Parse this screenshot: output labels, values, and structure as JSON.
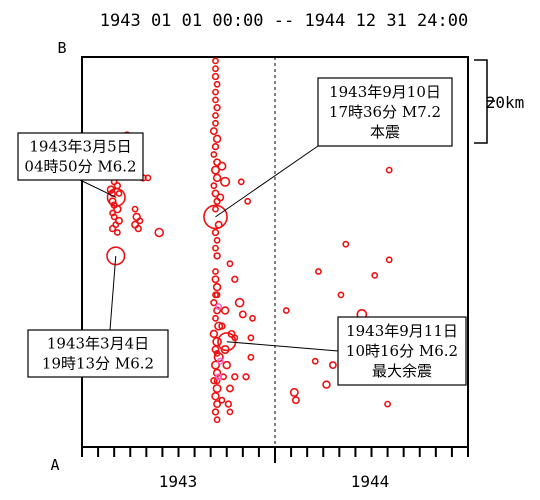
{
  "chart_data": {
    "type": "scatter",
    "title": "1943 01 01 00:00 -- 1944 12 31 24:00",
    "xlabel": "",
    "ylabel": "",
    "x_tick_labels": [
      "1943",
      "1944"
    ],
    "axis_end_labels": {
      "bottom": "A",
      "top": "B"
    },
    "xlim": [
      0,
      24
    ],
    "ylim": [
      0,
      100
    ],
    "scale_bar_label": "20km",
    "grid": false,
    "x_units": "months since 1943 01 01",
    "y_units": "relative distance along profile A-B",
    "colors": {
      "marker": "#ee1111",
      "minor_marker": "#ff66cc",
      "axis": "#000000"
    },
    "annotations": [
      {
        "line1": "1943年3月5日",
        "line2": "04時50分 M6.2",
        "line3": "",
        "x": 2.13,
        "y": 64
      },
      {
        "line1": "1943年3月4日",
        "line2": "19時13分 M6.2",
        "line3": "",
        "x": 2.1,
        "y": 49
      },
      {
        "line1": "1943年9月10日",
        "line2": "17時36分 M7.2",
        "line3": "本震",
        "x": 8.3,
        "y": 59
      },
      {
        "line1": "1943年9月11日",
        "line2": "10時16分 M6.2",
        "line3": "最大余震",
        "x": 9.0,
        "y": 27
      }
    ],
    "series": [
      {
        "values": [
          {
            "x": 2.13,
            "y": 64,
            "m": 6.2
          },
          {
            "x": 2.1,
            "y": 49,
            "m": 6.2
          },
          {
            "x": 1.8,
            "y": 72,
            "m": 4.0
          },
          {
            "x": 1.9,
            "y": 70,
            "m": 4.2
          },
          {
            "x": 2.0,
            "y": 68,
            "m": 4.0
          },
          {
            "x": 1.8,
            "y": 66,
            "m": 4.3
          },
          {
            "x": 1.9,
            "y": 65,
            "m": 4.0
          },
          {
            "x": 2.2,
            "y": 67,
            "m": 4.1
          },
          {
            "x": 2.3,
            "y": 65,
            "m": 4.0
          },
          {
            "x": 1.9,
            "y": 63,
            "m": 4.2
          },
          {
            "x": 2.0,
            "y": 62,
            "m": 4.1
          },
          {
            "x": 2.2,
            "y": 61,
            "m": 4.3
          },
          {
            "x": 1.9,
            "y": 60,
            "m": 4.0
          },
          {
            "x": 2.0,
            "y": 59,
            "m": 4.0
          },
          {
            "x": 2.3,
            "y": 58,
            "m": 4.2
          },
          {
            "x": 2.1,
            "y": 57,
            "m": 4.0
          },
          {
            "x": 2.2,
            "y": 55,
            "m": 4.0
          },
          {
            "x": 1.9,
            "y": 56,
            "m": 4.1
          },
          {
            "x": 1.7,
            "y": 73,
            "m": 4.0
          },
          {
            "x": 2.1,
            "y": 74,
            "m": 4.0
          },
          {
            "x": 2.8,
            "y": 80,
            "m": 4.1
          },
          {
            "x": 2.9,
            "y": 75,
            "m": 4.0
          },
          {
            "x": 2.7,
            "y": 71,
            "m": 4.0
          },
          {
            "x": 3.1,
            "y": 70,
            "m": 4.0
          },
          {
            "x": 3.8,
            "y": 69,
            "m": 4.1
          },
          {
            "x": 4.1,
            "y": 69,
            "m": 4.0
          },
          {
            "x": 3.3,
            "y": 61,
            "m": 4.0
          },
          {
            "x": 3.4,
            "y": 59,
            "m": 4.3
          },
          {
            "x": 3.3,
            "y": 57,
            "m": 4.2
          },
          {
            "x": 3.5,
            "y": 56,
            "m": 4.1
          },
          {
            "x": 3.6,
            "y": 58,
            "m": 4.0
          },
          {
            "x": 4.8,
            "y": 55,
            "m": 4.5
          },
          {
            "x": 8.3,
            "y": 59,
            "m": 7.2
          },
          {
            "x": 9.0,
            "y": 27,
            "m": 6.2
          },
          {
            "x": 8.3,
            "y": 99,
            "m": 4.0
          },
          {
            "x": 8.3,
            "y": 97,
            "m": 4.0
          },
          {
            "x": 8.3,
            "y": 95,
            "m": 4.1
          },
          {
            "x": 8.4,
            "y": 93,
            "m": 4.0
          },
          {
            "x": 8.3,
            "y": 91,
            "m": 4.0
          },
          {
            "x": 8.3,
            "y": 89,
            "m": 4.0
          },
          {
            "x": 8.4,
            "y": 87,
            "m": 4.1
          },
          {
            "x": 8.3,
            "y": 85,
            "m": 4.0
          },
          {
            "x": 8.3,
            "y": 83,
            "m": 4.0
          },
          {
            "x": 8.2,
            "y": 81,
            "m": 4.2
          },
          {
            "x": 8.4,
            "y": 79,
            "m": 4.3
          },
          {
            "x": 8.3,
            "y": 77,
            "m": 4.1
          },
          {
            "x": 8.2,
            "y": 75,
            "m": 4.0
          },
          {
            "x": 8.4,
            "y": 73,
            "m": 4.2
          },
          {
            "x": 8.3,
            "y": 71,
            "m": 4.4
          },
          {
            "x": 8.4,
            "y": 69,
            "m": 4.3
          },
          {
            "x": 8.2,
            "y": 67,
            "m": 4.0
          },
          {
            "x": 8.3,
            "y": 65,
            "m": 4.2
          },
          {
            "x": 8.4,
            "y": 63,
            "m": 4.1
          },
          {
            "x": 8.3,
            "y": 61,
            "m": 4.0
          },
          {
            "x": 8.5,
            "y": 57,
            "m": 4.2
          },
          {
            "x": 8.3,
            "y": 55,
            "m": 4.1
          },
          {
            "x": 8.4,
            "y": 53,
            "m": 4.0
          },
          {
            "x": 8.3,
            "y": 51,
            "m": 4.0
          },
          {
            "x": 8.4,
            "y": 49,
            "m": 4.1
          },
          {
            "x": 8.3,
            "y": 45,
            "m": 4.0
          },
          {
            "x": 8.3,
            "y": 43,
            "m": 4.2
          },
          {
            "x": 8.4,
            "y": 41,
            "m": 4.3
          },
          {
            "x": 8.3,
            "y": 39,
            "m": 4.0
          },
          {
            "x": 8.2,
            "y": 37,
            "m": 4.1
          },
          {
            "x": 8.4,
            "y": 35,
            "m": 4.2
          },
          {
            "x": 8.3,
            "y": 33,
            "m": 4.0
          },
          {
            "x": 8.5,
            "y": 31,
            "m": 4.4
          },
          {
            "x": 8.2,
            "y": 29,
            "m": 4.3
          },
          {
            "x": 8.4,
            "y": 27,
            "m": 4.5
          },
          {
            "x": 8.3,
            "y": 25,
            "m": 4.2
          },
          {
            "x": 8.5,
            "y": 23,
            "m": 4.6
          },
          {
            "x": 8.3,
            "y": 21,
            "m": 4.4
          },
          {
            "x": 8.4,
            "y": 19,
            "m": 4.3
          },
          {
            "x": 8.2,
            "y": 17,
            "m": 4.1
          },
          {
            "x": 8.4,
            "y": 15,
            "m": 4.4
          },
          {
            "x": 8.3,
            "y": 13,
            "m": 4.3
          },
          {
            "x": 8.4,
            "y": 11,
            "m": 4.2
          },
          {
            "x": 8.3,
            "y": 9,
            "m": 4.1
          },
          {
            "x": 8.4,
            "y": 7,
            "m": 4.0
          },
          {
            "x": 8.7,
            "y": 72,
            "m": 4.4
          },
          {
            "x": 8.9,
            "y": 68,
            "m": 4.6
          },
          {
            "x": 8.6,
            "y": 64,
            "m": 4.2
          },
          {
            "x": 8.9,
            "y": 35,
            "m": 4.3
          },
          {
            "x": 8.7,
            "y": 31,
            "m": 4.1
          },
          {
            "x": 9.3,
            "y": 29,
            "m": 4.2
          },
          {
            "x": 8.9,
            "y": 25,
            "m": 4.4
          },
          {
            "x": 9.0,
            "y": 21,
            "m": 4.3
          },
          {
            "x": 9.5,
            "y": 18,
            "m": 4.1
          },
          {
            "x": 8.8,
            "y": 18,
            "m": 4.0
          },
          {
            "x": 9.2,
            "y": 15,
            "m": 4.2
          },
          {
            "x": 8.7,
            "y": 12,
            "m": 4.0
          },
          {
            "x": 9.1,
            "y": 11,
            "m": 4.1
          },
          {
            "x": 9.2,
            "y": 9,
            "m": 4.0
          },
          {
            "x": 9.5,
            "y": 28,
            "m": 4.0
          },
          {
            "x": 9.5,
            "y": 43,
            "m": 4.1
          },
          {
            "x": 9.2,
            "y": 47,
            "m": 4.0
          },
          {
            "x": 9.8,
            "y": 37,
            "m": 4.5
          },
          {
            "x": 10.0,
            "y": 34,
            "m": 4.2
          },
          {
            "x": 10.6,
            "y": 33,
            "m": 4.0
          },
          {
            "x": 10.5,
            "y": 28,
            "m": 4.0
          },
          {
            "x": 10.5,
            "y": 23,
            "m": 4.0
          },
          {
            "x": 10.2,
            "y": 18,
            "m": 4.1
          },
          {
            "x": 10.3,
            "y": 63,
            "m": 4.0
          },
          {
            "x": 9.9,
            "y": 68,
            "m": 4.0
          },
          {
            "x": 8.4,
            "y": 39,
            "m": 3.8
          },
          {
            "x": 8.4,
            "y": 24,
            "m": 3.8
          },
          {
            "x": 8.4,
            "y": 17,
            "m": 3.8
          },
          {
            "x": 18.9,
            "y": 90,
            "m": 4.0
          },
          {
            "x": 19.1,
            "y": 71,
            "m": 4.0
          },
          {
            "x": 19.1,
            "y": 48,
            "m": 4.0
          },
          {
            "x": 18.2,
            "y": 44,
            "m": 4.0
          },
          {
            "x": 18.4,
            "y": 30,
            "m": 4.0
          },
          {
            "x": 16.4,
            "y": 52,
            "m": 4.0
          },
          {
            "x": 16.1,
            "y": 39,
            "m": 4.0
          },
          {
            "x": 14.7,
            "y": 45,
            "m": 4.0
          },
          {
            "x": 12.7,
            "y": 35,
            "m": 4.0
          },
          {
            "x": 15.2,
            "y": 16,
            "m": 4.3
          },
          {
            "x": 17.4,
            "y": 34,
            "m": 4.7
          },
          {
            "x": 13.2,
            "y": 14,
            "m": 4.4
          },
          {
            "x": 13.3,
            "y": 12,
            "m": 4.2
          },
          {
            "x": 15.6,
            "y": 21,
            "m": 4.2
          },
          {
            "x": 14.5,
            "y": 22,
            "m": 4.0
          },
          {
            "x": 19.0,
            "y": 11,
            "m": 4.0
          }
        ]
      },
      {
        "values": [
          {
            "x": 8.5,
            "y": 36,
            "m": 3.5
          },
          {
            "x": 8.6,
            "y": 22,
            "m": 3.5
          },
          {
            "x": 8.5,
            "y": 18,
            "m": 3.5
          }
        ]
      }
    ]
  }
}
